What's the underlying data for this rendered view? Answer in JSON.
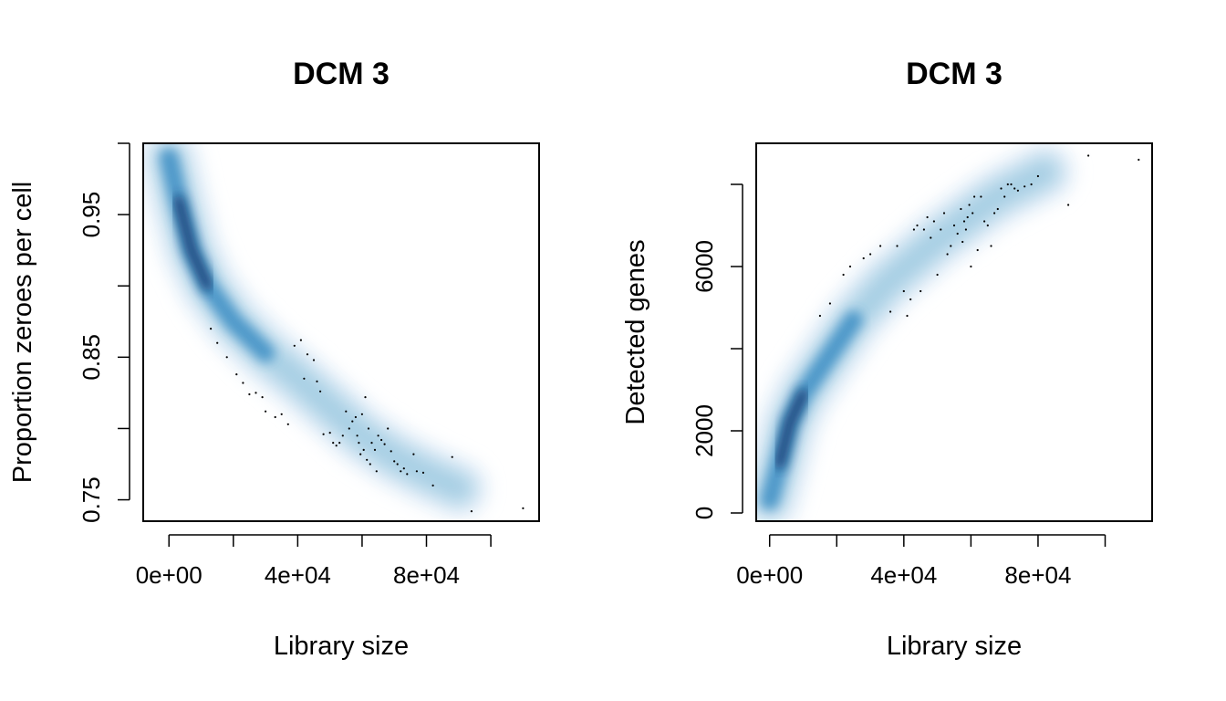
{
  "chart_data": [
    {
      "type": "scatter",
      "style": "smoothed density scatter (smoothScatter)",
      "title": "DCM 3",
      "xlabel": "Library size",
      "ylabel": "Proportion zeroes per cell",
      "xlim": [
        -8000,
        115000
      ],
      "ylim": [
        0.735,
        1.0
      ],
      "xticks": [
        0,
        20000,
        40000,
        60000,
        80000,
        100000
      ],
      "xtick_labels": [
        "0e+00",
        "",
        "4e+04",
        "",
        "8e+04",
        ""
      ],
      "yticks": [
        0.75,
        0.8,
        0.85,
        0.9,
        0.95,
        1.0
      ],
      "ytick_labels": [
        "0.75",
        "",
        "0.85",
        "",
        "0.95",
        ""
      ],
      "density_ridge": [
        [
          0,
          0.99
        ],
        [
          3000,
          0.96
        ],
        [
          7000,
          0.925
        ],
        [
          12000,
          0.9
        ],
        [
          20000,
          0.875
        ],
        [
          30000,
          0.853
        ],
        [
          40000,
          0.835
        ],
        [
          50000,
          0.815
        ],
        [
          60000,
          0.795
        ],
        [
          70000,
          0.78
        ],
        [
          80000,
          0.768
        ],
        [
          90000,
          0.758
        ]
      ],
      "points": [
        [
          13000,
          0.87
        ],
        [
          15000,
          0.86
        ],
        [
          18000,
          0.85
        ],
        [
          21000,
          0.838
        ],
        [
          23000,
          0.832
        ],
        [
          25000,
          0.824
        ],
        [
          27000,
          0.825
        ],
        [
          29000,
          0.822
        ],
        [
          30000,
          0.812
        ],
        [
          33000,
          0.808
        ],
        [
          35000,
          0.81
        ],
        [
          37000,
          0.803
        ],
        [
          39000,
          0.858
        ],
        [
          41000,
          0.862
        ],
        [
          42000,
          0.835
        ],
        [
          43000,
          0.852
        ],
        [
          45000,
          0.848
        ],
        [
          46000,
          0.833
        ],
        [
          47000,
          0.826
        ],
        [
          48000,
          0.796
        ],
        [
          50000,
          0.797
        ],
        [
          51000,
          0.79
        ],
        [
          52000,
          0.788
        ],
        [
          53000,
          0.79
        ],
        [
          54000,
          0.795
        ],
        [
          55000,
          0.812
        ],
        [
          56000,
          0.8
        ],
        [
          57000,
          0.805
        ],
        [
          58000,
          0.808
        ],
        [
          58500,
          0.795
        ],
        [
          59000,
          0.79
        ],
        [
          59500,
          0.782
        ],
        [
          60000,
          0.81
        ],
        [
          60500,
          0.785
        ],
        [
          61000,
          0.822
        ],
        [
          61500,
          0.778
        ],
        [
          62000,
          0.8
        ],
        [
          62500,
          0.775
        ],
        [
          63000,
          0.79
        ],
        [
          64000,
          0.785
        ],
        [
          64500,
          0.77
        ],
        [
          65000,
          0.795
        ],
        [
          66000,
          0.792
        ],
        [
          67000,
          0.789
        ],
        [
          68000,
          0.8
        ],
        [
          69000,
          0.784
        ],
        [
          70000,
          0.777
        ],
        [
          71000,
          0.775
        ],
        [
          72000,
          0.77
        ],
        [
          73000,
          0.772
        ],
        [
          74000,
          0.768
        ],
        [
          76000,
          0.782
        ],
        [
          77000,
          0.77
        ],
        [
          79000,
          0.769
        ],
        [
          82000,
          0.76
        ],
        [
          88000,
          0.78
        ],
        [
          94000,
          0.742
        ],
        [
          110000,
          0.744
        ]
      ]
    },
    {
      "type": "scatter",
      "style": "smoothed density scatter (smoothScatter)",
      "title": "DCM 3",
      "xlabel": "Library size",
      "ylabel": "Detected genes",
      "xlim": [
        -4000,
        114000
      ],
      "ylim": [
        -200,
        9000
      ],
      "xticks": [
        0,
        20000,
        40000,
        60000,
        80000,
        100000
      ],
      "xtick_labels": [
        "0e+00",
        "",
        "4e+04",
        "",
        "8e+04",
        ""
      ],
      "yticks": [
        0,
        2000,
        4000,
        6000,
        8000
      ],
      "ytick_labels": [
        "0",
        "2000",
        "",
        "6000",
        ""
      ],
      "density_ridge": [
        [
          0,
          300
        ],
        [
          3000,
          1200
        ],
        [
          6000,
          2200
        ],
        [
          10000,
          2900
        ],
        [
          15000,
          3500
        ],
        [
          20000,
          4100
        ],
        [
          25000,
          4700
        ],
        [
          30000,
          5150
        ],
        [
          35000,
          5600
        ],
        [
          40000,
          5950
        ],
        [
          45000,
          6300
        ],
        [
          50000,
          6650
        ],
        [
          55000,
          6950
        ],
        [
          60000,
          7250
        ],
        [
          65000,
          7550
        ],
        [
          70000,
          7800
        ],
        [
          75000,
          8000
        ],
        [
          82000,
          8300
        ]
      ],
      "points": [
        [
          15000,
          4800
        ],
        [
          18000,
          5100
        ],
        [
          22000,
          5800
        ],
        [
          24000,
          6000
        ],
        [
          28000,
          6200
        ],
        [
          30000,
          6300
        ],
        [
          33000,
          6500
        ],
        [
          36000,
          4900
        ],
        [
          38000,
          6500
        ],
        [
          40000,
          5400
        ],
        [
          41000,
          4800
        ],
        [
          42000,
          5200
        ],
        [
          43000,
          6900
        ],
        [
          44000,
          7000
        ],
        [
          45000,
          5400
        ],
        [
          46000,
          6900
        ],
        [
          47000,
          7200
        ],
        [
          48000,
          6700
        ],
        [
          49000,
          7100
        ],
        [
          50000,
          5800
        ],
        [
          51000,
          6900
        ],
        [
          52000,
          7300
        ],
        [
          53000,
          6300
        ],
        [
          54000,
          6500
        ],
        [
          55000,
          7000
        ],
        [
          56000,
          6800
        ],
        [
          57000,
          7400
        ],
        [
          57500,
          6600
        ],
        [
          58000,
          7100
        ],
        [
          58500,
          6900
        ],
        [
          59000,
          7200
        ],
        [
          59500,
          7500
        ],
        [
          60000,
          6000
        ],
        [
          60500,
          7300
        ],
        [
          61000,
          7700
        ],
        [
          62000,
          6400
        ],
        [
          63000,
          7700
        ],
        [
          64000,
          7100
        ],
        [
          65000,
          7000
        ],
        [
          66000,
          6500
        ],
        [
          67000,
          7300
        ],
        [
          68000,
          7400
        ],
        [
          69000,
          7900
        ],
        [
          70000,
          7700
        ],
        [
          71000,
          8000
        ],
        [
          72000,
          8000
        ],
        [
          73000,
          7900
        ],
        [
          74000,
          7850
        ],
        [
          76000,
          7950
        ],
        [
          78000,
          8000
        ],
        [
          80000,
          8200
        ],
        [
          89000,
          7500
        ],
        [
          95000,
          8700
        ],
        [
          110000,
          8600
        ]
      ]
    }
  ]
}
